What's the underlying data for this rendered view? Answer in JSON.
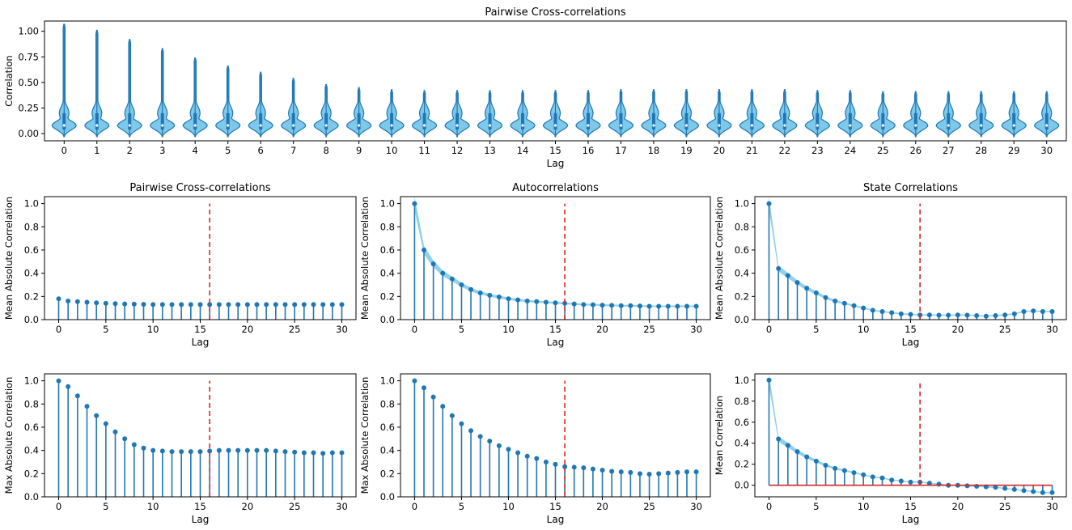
{
  "chart_data": [
    {
      "id": "violin",
      "type": "violin",
      "title": "Pairwise Cross-correlations",
      "xlabel": "Lag",
      "ylabel": "Correlation",
      "xlim": [
        -0.6,
        30.6
      ],
      "ylim": [
        -0.07,
        1.1
      ],
      "yticks": [
        0.0,
        0.25,
        0.5,
        0.75,
        1.0
      ],
      "ytick_labels": [
        "0.00",
        "0.25",
        "0.50",
        "0.75",
        "1.00"
      ],
      "categories": [
        "0",
        "1",
        "2",
        "3",
        "4",
        "5",
        "6",
        "7",
        "8",
        "9",
        "10",
        "11",
        "12",
        "13",
        "14",
        "15",
        "16",
        "17",
        "18",
        "19",
        "20",
        "21",
        "22",
        "23",
        "24",
        "25",
        "26",
        "27",
        "28",
        "29",
        "30"
      ],
      "max": [
        1.07,
        1.01,
        0.92,
        0.83,
        0.74,
        0.66,
        0.6,
        0.54,
        0.48,
        0.45,
        0.43,
        0.42,
        0.42,
        0.42,
        0.42,
        0.42,
        0.42,
        0.43,
        0.43,
        0.43,
        0.43,
        0.43,
        0.43,
        0.42,
        0.42,
        0.41,
        0.41,
        0.41,
        0.41,
        0.41,
        0.41
      ],
      "min": -0.03,
      "q1": 0.04,
      "median": 0.08,
      "q3": 0.2,
      "mode": 0.08
    },
    {
      "id": "cross_mean",
      "type": "stem",
      "title": "Pairwise Cross-correlations",
      "xlabel": "Lag",
      "ylabel": "Mean Absolute Correlation",
      "xlim": [
        -1.5,
        31.5
      ],
      "ylim": [
        0,
        1.06
      ],
      "xticks": [
        0,
        5,
        10,
        15,
        20,
        25,
        30
      ],
      "yticks": [
        0.0,
        0.2,
        0.4,
        0.6,
        0.8,
        1.0
      ],
      "ytick_labels": [
        "0.0",
        "0.2",
        "0.4",
        "0.6",
        "0.8",
        "1.0"
      ],
      "vline": 16,
      "x": [
        0,
        1,
        2,
        3,
        4,
        5,
        6,
        7,
        8,
        9,
        10,
        11,
        12,
        13,
        14,
        15,
        16,
        17,
        18,
        19,
        20,
        21,
        22,
        23,
        24,
        25,
        26,
        27,
        28,
        29,
        30
      ],
      "values": [
        0.18,
        0.16,
        0.155,
        0.15,
        0.145,
        0.14,
        0.138,
        0.135,
        0.133,
        0.132,
        0.13,
        0.13,
        0.13,
        0.13,
        0.13,
        0.13,
        0.13,
        0.13,
        0.13,
        0.13,
        0.13,
        0.13,
        0.13,
        0.13,
        0.13,
        0.13,
        0.13,
        0.13,
        0.13,
        0.13,
        0.13
      ]
    },
    {
      "id": "auto_mean",
      "type": "stem",
      "title": "Autocorrelations",
      "xlabel": "Lag",
      "ylabel": "Mean Absolute Correlation",
      "xlim": [
        -1.5,
        31.5
      ],
      "ylim": [
        0,
        1.06
      ],
      "xticks": [
        0,
        5,
        10,
        15,
        20,
        25,
        30
      ],
      "yticks": [
        0.0,
        0.2,
        0.4,
        0.6,
        0.8,
        1.0
      ],
      "ytick_labels": [
        "0.0",
        "0.2",
        "0.4",
        "0.6",
        "0.8",
        "1.0"
      ],
      "vline": 16,
      "band": true,
      "x": [
        0,
        1,
        2,
        3,
        4,
        5,
        6,
        7,
        8,
        9,
        10,
        11,
        12,
        13,
        14,
        15,
        16,
        17,
        18,
        19,
        20,
        21,
        22,
        23,
        24,
        25,
        26,
        27,
        28,
        29,
        30
      ],
      "values": [
        1.0,
        0.6,
        0.48,
        0.4,
        0.35,
        0.3,
        0.26,
        0.23,
        0.21,
        0.195,
        0.18,
        0.17,
        0.16,
        0.155,
        0.15,
        0.145,
        0.14,
        0.135,
        0.13,
        0.128,
        0.125,
        0.123,
        0.12,
        0.12,
        0.118,
        0.115,
        0.115,
        0.115,
        0.115,
        0.115,
        0.115
      ]
    },
    {
      "id": "state_mean_abs",
      "type": "stem",
      "title": "State Correlations",
      "xlabel": "Lag",
      "ylabel": "Mean Absolute Correlation",
      "xlim": [
        -1.5,
        31.5
      ],
      "ylim": [
        0,
        1.06
      ],
      "xticks": [
        0,
        5,
        10,
        15,
        20,
        25,
        30
      ],
      "yticks": [
        0.0,
        0.2,
        0.4,
        0.6,
        0.8,
        1.0
      ],
      "ytick_labels": [
        "0.0",
        "0.2",
        "0.4",
        "0.6",
        "0.8",
        "1.0"
      ],
      "vline": 16,
      "band": true,
      "x": [
        0,
        1,
        2,
        3,
        4,
        5,
        6,
        7,
        8,
        9,
        10,
        11,
        12,
        13,
        14,
        15,
        16,
        17,
        18,
        19,
        20,
        21,
        22,
        23,
        24,
        25,
        26,
        27,
        28,
        29,
        30
      ],
      "values": [
        1.0,
        0.44,
        0.38,
        0.32,
        0.27,
        0.23,
        0.19,
        0.16,
        0.14,
        0.12,
        0.1,
        0.08,
        0.07,
        0.06,
        0.05,
        0.045,
        0.04,
        0.04,
        0.038,
        0.038,
        0.04,
        0.038,
        0.035,
        0.03,
        0.035,
        0.04,
        0.05,
        0.07,
        0.075,
        0.07,
        0.07
      ]
    },
    {
      "id": "cross_max",
      "type": "stem",
      "title": "",
      "xlabel": "Lag",
      "ylabel": "Max Absolute Correlation",
      "xlim": [
        -1.5,
        31.5
      ],
      "ylim": [
        0,
        1.06
      ],
      "xticks": [
        0,
        5,
        10,
        15,
        20,
        25,
        30
      ],
      "yticks": [
        0.0,
        0.2,
        0.4,
        0.6,
        0.8,
        1.0
      ],
      "ytick_labels": [
        "0.0",
        "0.2",
        "0.4",
        "0.6",
        "0.8",
        "1.0"
      ],
      "vline": 16,
      "x": [
        0,
        1,
        2,
        3,
        4,
        5,
        6,
        7,
        8,
        9,
        10,
        11,
        12,
        13,
        14,
        15,
        16,
        17,
        18,
        19,
        20,
        21,
        22,
        23,
        24,
        25,
        26,
        27,
        28,
        29,
        30
      ],
      "values": [
        1.0,
        0.95,
        0.87,
        0.78,
        0.7,
        0.63,
        0.56,
        0.5,
        0.45,
        0.42,
        0.4,
        0.395,
        0.39,
        0.39,
        0.39,
        0.39,
        0.395,
        0.4,
        0.4,
        0.4,
        0.4,
        0.4,
        0.4,
        0.395,
        0.39,
        0.385,
        0.38,
        0.38,
        0.375,
        0.38,
        0.38
      ]
    },
    {
      "id": "auto_max",
      "type": "stem",
      "title": "",
      "xlabel": "Lag",
      "ylabel": "Max Absolute Correlation",
      "xlim": [
        -1.5,
        31.5
      ],
      "ylim": [
        0,
        1.06
      ],
      "xticks": [
        0,
        5,
        10,
        15,
        20,
        25,
        30
      ],
      "yticks": [
        0.0,
        0.2,
        0.4,
        0.6,
        0.8,
        1.0
      ],
      "ytick_labels": [
        "0.0",
        "0.2",
        "0.4",
        "0.6",
        "0.8",
        "1.0"
      ],
      "vline": 16,
      "x": [
        0,
        1,
        2,
        3,
        4,
        5,
        6,
        7,
        8,
        9,
        10,
        11,
        12,
        13,
        14,
        15,
        16,
        17,
        18,
        19,
        20,
        21,
        22,
        23,
        24,
        25,
        26,
        27,
        28,
        29,
        30
      ],
      "values": [
        1.0,
        0.94,
        0.86,
        0.78,
        0.7,
        0.63,
        0.57,
        0.52,
        0.48,
        0.44,
        0.41,
        0.38,
        0.35,
        0.33,
        0.3,
        0.28,
        0.26,
        0.255,
        0.25,
        0.24,
        0.23,
        0.22,
        0.215,
        0.21,
        0.2,
        0.195,
        0.2,
        0.205,
        0.21,
        0.215,
        0.215
      ]
    },
    {
      "id": "state_mean",
      "type": "stem",
      "title": "",
      "xlabel": "Lag",
      "ylabel": "Mean Correlation",
      "xlim": [
        -1.5,
        31.5
      ],
      "ylim": [
        -0.11,
        1.06
      ],
      "xticks": [
        0,
        5,
        10,
        15,
        20,
        25,
        30
      ],
      "yticks": [
        0.0,
        0.2,
        0.4,
        0.6,
        0.8,
        1.0
      ],
      "ytick_labels": [
        "0.0",
        "0.2",
        "0.4",
        "0.6",
        "0.8",
        "1.0"
      ],
      "vline": 16,
      "baseline": true,
      "band": true,
      "x": [
        0,
        1,
        2,
        3,
        4,
        5,
        6,
        7,
        8,
        9,
        10,
        11,
        12,
        13,
        14,
        15,
        16,
        17,
        18,
        19,
        20,
        21,
        22,
        23,
        24,
        25,
        26,
        27,
        28,
        29,
        30
      ],
      "values": [
        1.0,
        0.44,
        0.38,
        0.32,
        0.27,
        0.23,
        0.19,
        0.16,
        0.14,
        0.12,
        0.1,
        0.08,
        0.07,
        0.05,
        0.04,
        0.03,
        0.03,
        0.02,
        0.01,
        0.0,
        0.0,
        -0.005,
        -0.01,
        -0.015,
        -0.02,
        -0.03,
        -0.04,
        -0.05,
        -0.06,
        -0.07,
        -0.07
      ]
    }
  ],
  "colors": {
    "line": "#1f77b4",
    "violin_fill": "#7ec8ea",
    "band": "#7ec8ea",
    "vline": "#d62728",
    "baseline": "#d62728"
  }
}
